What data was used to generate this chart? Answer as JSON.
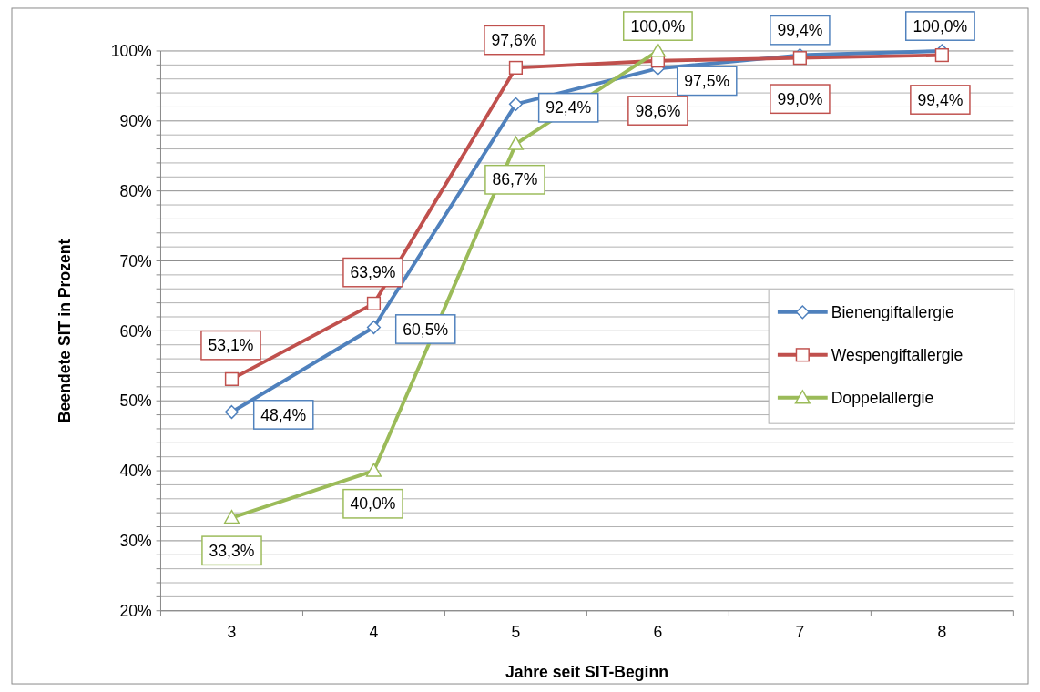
{
  "chart_data": {
    "type": "line",
    "xlabel": "Jahre seit SIT-Beginn",
    "ylabel": "Beendete  SIT in Prozent",
    "categories": [
      "3",
      "4",
      "5",
      "6",
      "7",
      "8"
    ],
    "series": [
      {
        "name": "Bienengiftallergie",
        "color": "#4f81bd",
        "marker": "diamond",
        "values": [
          48.4,
          60.5,
          92.4,
          97.5,
          99.4,
          100.0
        ],
        "value_labels": [
          "48,4%",
          "60,5%",
          "92,4%",
          "97,5%",
          "99,4%",
          "100,0%"
        ]
      },
      {
        "name": "Wespengiftallergie",
        "color": "#c0504d",
        "marker": "square",
        "values": [
          53.1,
          63.9,
          97.6,
          98.6,
          99.0,
          99.4
        ],
        "value_labels": [
          "53,1%",
          "63,9%",
          "97,6%",
          "98,6%",
          "99,0%",
          "99,4%"
        ]
      },
      {
        "name": "Doppelallergie",
        "color": "#9bbb59",
        "marker": "triangle",
        "values": [
          33.3,
          40.0,
          86.7,
          100.0,
          null,
          null
        ],
        "value_labels": [
          "33,3%",
          "40,0%",
          "86,7%",
          "100,0%",
          null,
          null
        ]
      }
    ],
    "ylim": [
      20,
      100
    ],
    "yticks": [
      {
        "value": 20,
        "label": "20%"
      },
      {
        "value": 22,
        "label": null
      },
      {
        "value": 24,
        "label": null
      },
      {
        "value": 26,
        "label": null
      },
      {
        "value": 28,
        "label": null
      },
      {
        "value": 30,
        "label": "30%"
      },
      {
        "value": 32,
        "label": null
      },
      {
        "value": 34,
        "label": null
      },
      {
        "value": 36,
        "label": null
      },
      {
        "value": 38,
        "label": null
      },
      {
        "value": 40,
        "label": "40%"
      },
      {
        "value": 42,
        "label": null
      },
      {
        "value": 44,
        "label": null
      },
      {
        "value": 46,
        "label": null
      },
      {
        "value": 48,
        "label": null
      },
      {
        "value": 50,
        "label": "50%"
      },
      {
        "value": 52,
        "label": null
      },
      {
        "value": 54,
        "label": null
      },
      {
        "value": 56,
        "label": null
      },
      {
        "value": 58,
        "label": null
      },
      {
        "value": 60,
        "label": "60%"
      },
      {
        "value": 62,
        "label": null
      },
      {
        "value": 64,
        "label": null
      },
      {
        "value": 66,
        "label": null
      },
      {
        "value": 68,
        "label": null
      },
      {
        "value": 70,
        "label": "70%"
      },
      {
        "value": 72,
        "label": null
      },
      {
        "value": 74,
        "label": null
      },
      {
        "value": 76,
        "label": null
      },
      {
        "value": 78,
        "label": null
      },
      {
        "value": 80,
        "label": "80%"
      },
      {
        "value": 82,
        "label": null
      },
      {
        "value": 84,
        "label": null
      },
      {
        "value": 86,
        "label": null
      },
      {
        "value": 88,
        "label": null
      },
      {
        "value": 90,
        "label": "90%"
      },
      {
        "value": 92,
        "label": null
      },
      {
        "value": 94,
        "label": null
      },
      {
        "value": 96,
        "label": null
      },
      {
        "value": 98,
        "label": null
      },
      {
        "value": 100,
        "label": "100%"
      }
    ],
    "grid": "y",
    "legend": "right",
    "line_style": "solid"
  }
}
